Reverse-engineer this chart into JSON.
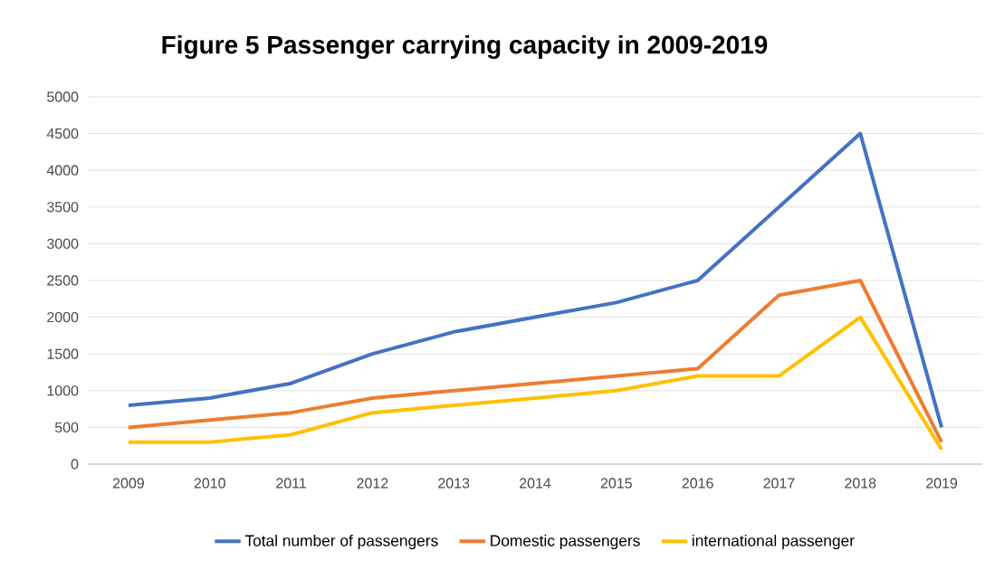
{
  "chart_data": {
    "type": "line",
    "title": "Figure 5 Passenger carrying capacity in 2009-2019",
    "categories": [
      "2009",
      "2010",
      "2011",
      "2012",
      "2013",
      "2014",
      "2015",
      "2016",
      "2017",
      "2018",
      "2019"
    ],
    "series": [
      {
        "name": "Total number of passengers",
        "color": "#4472c4",
        "values": [
          800,
          900,
          1100,
          1500,
          1800,
          2000,
          2200,
          2500,
          3500,
          4500,
          500
        ]
      },
      {
        "name": "Domestic passengers",
        "color": "#ed7d31",
        "values": [
          500,
          600,
          700,
          900,
          1000,
          1100,
          1200,
          1300,
          2300,
          2500,
          300
        ]
      },
      {
        "name": "international passenger",
        "color": "#ffc000",
        "values": [
          300,
          300,
          400,
          700,
          800,
          900,
          1000,
          1200,
          1200,
          2000,
          200
        ]
      }
    ],
    "ylim": [
      0,
      5000
    ],
    "yticks": [
      0,
      500,
      1000,
      1500,
      2000,
      2500,
      3000,
      3500,
      4000,
      4500,
      5000
    ],
    "grid": "y",
    "legend": "bottom"
  }
}
